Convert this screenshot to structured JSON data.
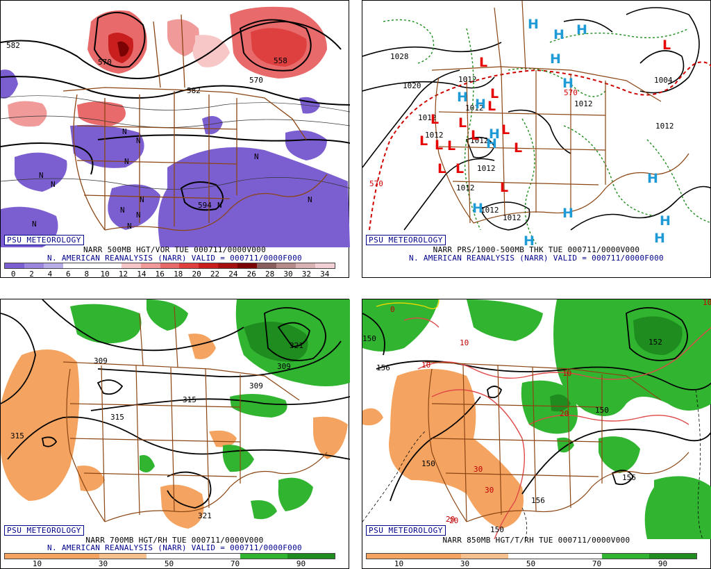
{
  "panels": [
    {
      "id": "p1",
      "credit": "PSU METEOROLOGY",
      "caption_line1": "NARR 500MB HGT/VOR TUE 000711/0000V000",
      "caption_line2": "N. AMERICAN REANALYSIS (NARR) VALID = 000711/0000F000",
      "colorbar_colors": [
        "#7b5fd1",
        "#9a86dd",
        "#b9ade8",
        "#ffffff",
        "#ffffff",
        "#ffffff",
        "#f7c6c6",
        "#f09a9a",
        "#e86a6a",
        "#de3f3f",
        "#c81e1e",
        "#a40f0f",
        "#7c0303",
        "#8b5e5e",
        "#b58b8b",
        "#d9b3b3",
        "#f3d0d6"
      ],
      "colorbar_ticks": [
        "0",
        "2",
        "4",
        "6",
        "8",
        "10",
        "12",
        "14",
        "16",
        "18",
        "20",
        "22",
        "24",
        "26",
        "28",
        "30",
        "32",
        "34"
      ],
      "contour_labels": [
        "582",
        "570",
        "558",
        "570",
        "582",
        "594"
      ],
      "vorticity_marks": [
        "N",
        "N",
        "N",
        "N",
        "N",
        "N",
        "N",
        "N",
        "N",
        "N",
        "N",
        "N",
        "N"
      ]
    },
    {
      "id": "p2",
      "credit": "PSU METEOROLOGY",
      "caption_line1": "NARR PRS/1000-500MB THK TUE 000711/0000V000",
      "caption_line2": "N. AMERICAN REANALYSIS (NARR) VALID = 000711/0000F000",
      "isobar_labels": [
        "1028",
        "1020",
        "1012",
        "1012",
        "1012",
        "1012",
        "1012",
        "1012",
        "1012",
        "1012",
        "1004",
        "1012",
        "1012",
        "1012"
      ],
      "thickness_labels": [
        "570",
        "570"
      ],
      "high_symbol": "H",
      "low_symbol": "L"
    },
    {
      "id": "p3",
      "credit": "PSU METEOROLOGY",
      "caption_line1": "NARR 700MB HGT/RH TUE 000711/0000V000",
      "caption_line2": "N. AMERICAN REANALYSIS (NARR) VALID = 000711/0000F000",
      "colorbar_colors": [
        "#f4a460",
        "#f4a460",
        "#f7c08f",
        "#ffffff",
        "#ffffff",
        "#31b531",
        "#1e8c1e"
      ],
      "colorbar_ticks": [
        "10",
        "30",
        "50",
        "70",
        "90"
      ],
      "contour_labels": [
        "321",
        "309",
        "309",
        "309",
        "315",
        "315",
        "315",
        "321"
      ]
    },
    {
      "id": "p4",
      "credit": "PSU METEOROLOGY",
      "caption_line1": "NARR 850MB HGT/T/RH TUE 000711/0000V000",
      "caption_line2": "",
      "colorbar_colors": [
        "#f4a460",
        "#f4a460",
        "#f7c08f",
        "#ffffff",
        "#ffffff",
        "#31b531",
        "#1e8c1e"
      ],
      "colorbar_ticks": [
        "10",
        "30",
        "50",
        "70",
        "90"
      ],
      "contour_labels": [
        "152",
        "156",
        "150",
        "150",
        "156",
        "156",
        "150",
        "150"
      ],
      "temperature_labels": [
        "0",
        "10",
        "10",
        "20",
        "10",
        "20",
        "30",
        "30",
        "20",
        "10"
      ]
    }
  ]
}
